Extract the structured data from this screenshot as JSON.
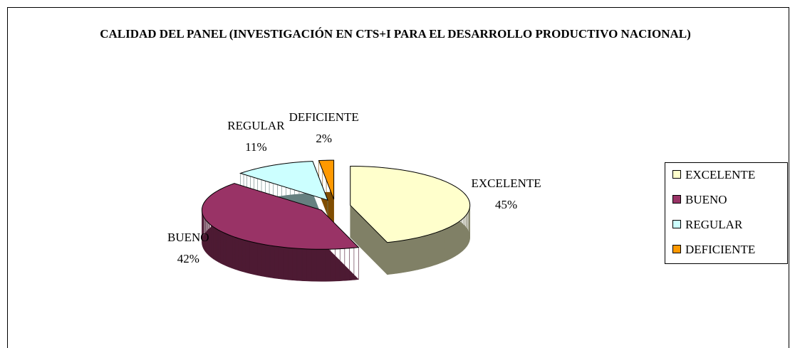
{
  "chart_data": {
    "type": "pie3d",
    "title": "CALIDAD DEL PANEL (INVESTIGACIÓN EN CTS+I  PARA EL DESARROLLO PRODUCTIVO NACIONAL)",
    "categories": [
      "EXCELENTE",
      "BUENO",
      "REGULAR",
      "DEFICIENTE"
    ],
    "values": [
      45,
      42,
      11,
      2
    ],
    "value_labels": [
      "45%",
      "42%",
      "11%",
      "2%"
    ],
    "colors": [
      "#FFFFCC",
      "#993366",
      "#CCFFFF",
      "#FF9900"
    ],
    "legend": "right"
  }
}
